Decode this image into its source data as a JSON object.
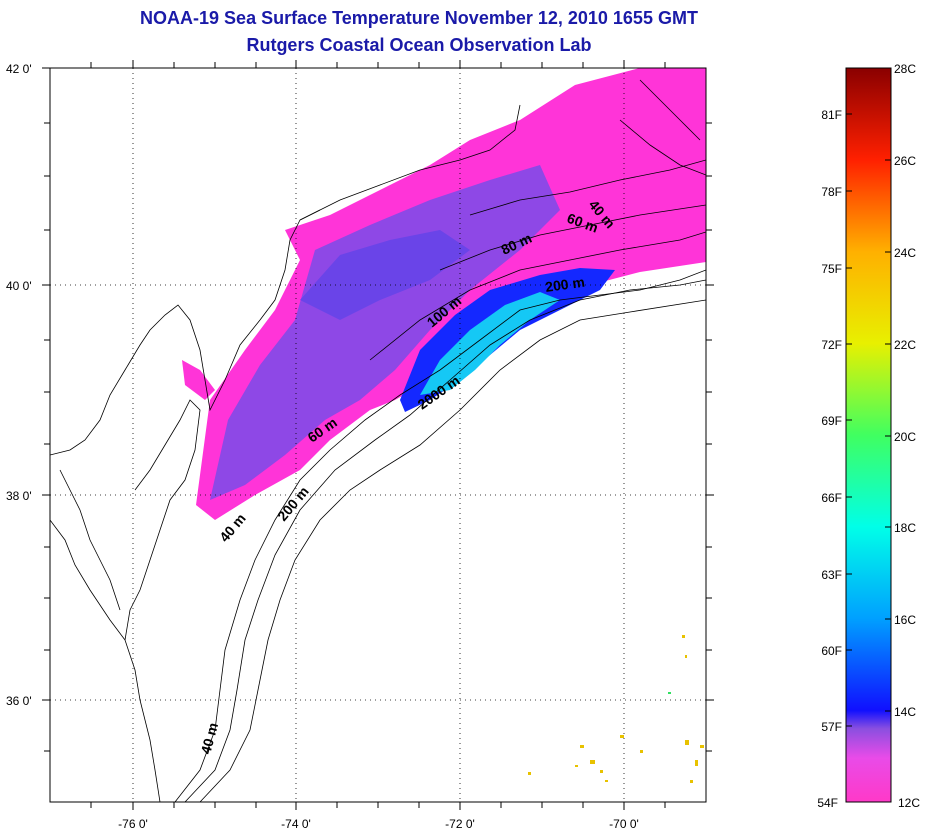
{
  "title": {
    "line1": "NOAA-19 Sea Surface Temperature November 12, 2010 1655 GMT",
    "line2": "Rutgers Coastal Ocean Observation Lab"
  },
  "map": {
    "lon_ticks": [
      "-76 0'",
      "-74 0'",
      "-72 0'",
      "-70 0'"
    ],
    "lat_ticks": [
      "42 0'",
      "40 0'",
      "38 0'",
      "36 0'"
    ],
    "lon_range": [
      -77,
      -69
    ],
    "lat_range": [
      35,
      42
    ]
  },
  "contour_labels": [
    "40 m",
    "60 m",
    "80 m",
    "200 m",
    "100 m",
    "2000 m",
    "60 m",
    "200 m",
    "40 m",
    "40 m"
  ],
  "colorbar": {
    "celsius": [
      "28C",
      "26C",
      "24C",
      "22C",
      "20C",
      "18C",
      "16C",
      "14C",
      "12C"
    ],
    "fahrenheit": [
      "81F",
      "78F",
      "75F",
      "72F",
      "69F",
      "66F",
      "63F",
      "60F",
      "57F",
      "54F"
    ],
    "colors": [
      "#ff39c8",
      "#ff3ce6",
      "#8a4fe0",
      "#2020ff",
      "#00a0ff",
      "#00ffe8",
      "#40ff60",
      "#e8f000",
      "#ffb000",
      "#ff2000",
      "#8a0000"
    ]
  }
}
